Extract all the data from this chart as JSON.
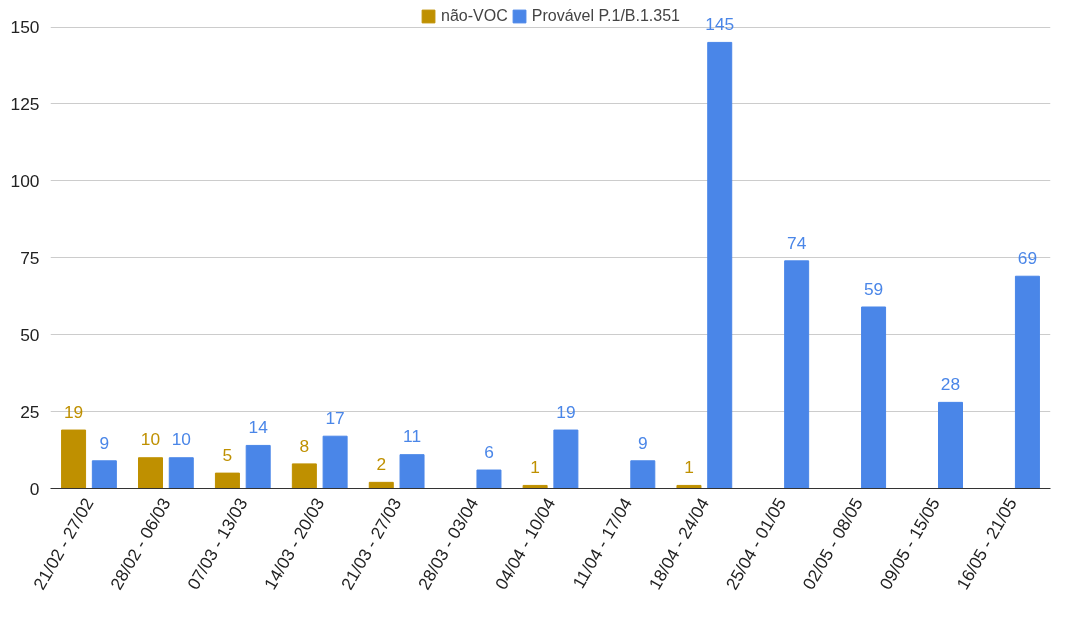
{
  "chart_data": {
    "type": "bar",
    "categories": [
      "21/02 - 27/02",
      "28/02 - 06/03",
      "07/03 - 13/03",
      "14/03 - 20/03",
      "21/03 - 27/03",
      "28/03 - 03/04",
      "04/04 - 10/04",
      "11/04 - 17/04",
      "18/04 - 24/04",
      "25/04 - 01/05",
      "02/05 - 08/05",
      "09/05 - 15/05",
      "16/05 - 21/05"
    ],
    "series": [
      {
        "name": "não-VOC",
        "color": "#bf9000",
        "values": [
          19,
          10,
          5,
          8,
          2,
          null,
          1,
          null,
          1,
          null,
          null,
          null,
          null
        ]
      },
      {
        "name": "Provável P.1/B.1.351",
        "color": "#4a86e8",
        "values": [
          9,
          10,
          14,
          17,
          11,
          6,
          19,
          9,
          145,
          74,
          59,
          28,
          69
        ]
      }
    ],
    "ylim": [
      0,
      157
    ],
    "yticks": [
      0,
      25,
      50,
      75,
      100,
      125,
      150
    ],
    "grid": "y",
    "legend": "top",
    "data_labels": true
  }
}
